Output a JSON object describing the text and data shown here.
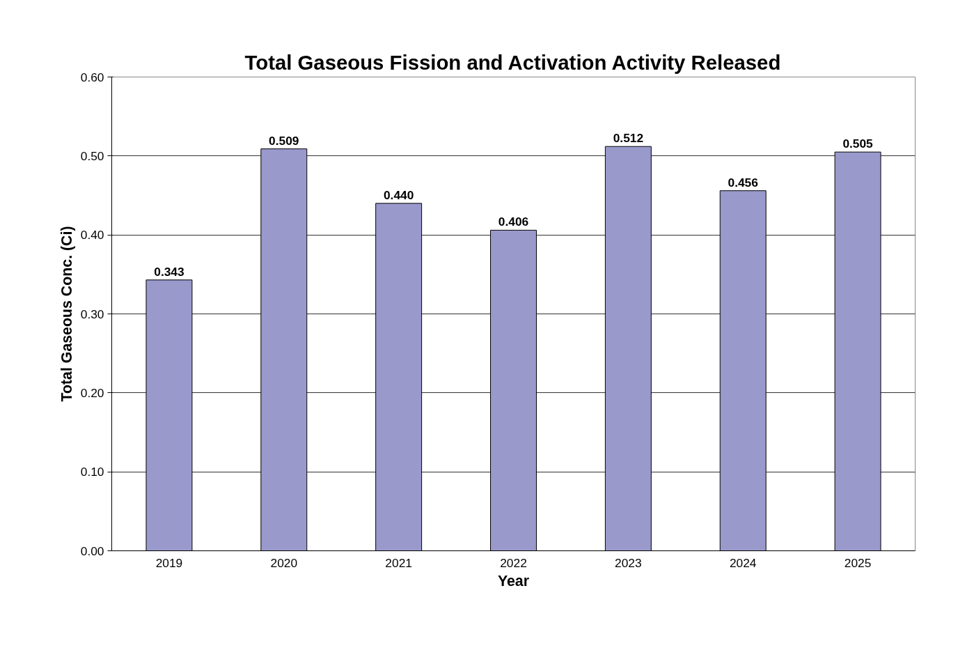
{
  "chart_data": {
    "type": "bar",
    "title": "Total Gaseous Fission and Activation Activity Released",
    "xlabel": "Year",
    "ylabel": "Total Gaseous Conc. (Ci)",
    "categories": [
      "2019",
      "2020",
      "2021",
      "2022",
      "2023",
      "2024",
      "2025"
    ],
    "values": [
      0.343,
      0.509,
      0.44,
      0.406,
      0.512,
      0.456,
      0.505
    ],
    "value_labels": [
      "0.343",
      "0.509",
      "0.440",
      "0.406",
      "0.512",
      "0.456",
      "0.505"
    ],
    "color": "#9999cc",
    "ylim": [
      0,
      0.6
    ],
    "yticks": [
      {
        "value": 0,
        "label": "0.00"
      },
      {
        "value": 0.1,
        "label": "0.10"
      },
      {
        "value": 0.2,
        "label": "0.20"
      },
      {
        "value": 0.3,
        "label": "0.30"
      },
      {
        "value": 0.4,
        "label": "0.40"
      },
      {
        "value": 0.5,
        "label": "0.50"
      },
      {
        "value": 0.6,
        "label": "0.60"
      }
    ],
    "grid": "y"
  }
}
